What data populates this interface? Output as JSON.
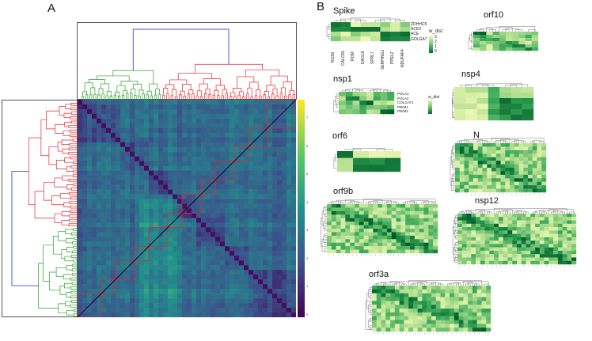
{
  "panels": {
    "a": "A",
    "b": "B"
  },
  "panel_a": {
    "colorbar_ticks": [
      "7",
      "6",
      "5",
      "4",
      "3",
      "2",
      "1",
      "0"
    ],
    "colors": {
      "top_cluster": "#3b4fd8",
      "left_group": "#2ca02c",
      "right_group": "#e8262b",
      "highlight": "#e8262b"
    }
  },
  "panel_b": {
    "spike": {
      "title": "Spike",
      "row_labels": [
        "ZDHHC5",
        "ACE2",
        "ACE",
        "GOLGA7"
      ],
      "col_labels": [
        "RG59",
        "CALCRL",
        "ROM",
        "DAGL8",
        "SPRL7",
        "SERPING1",
        "PPEL2",
        "NDUFAF4"
      ],
      "legend_title": "w_dist",
      "legend_ticks": [
        "3",
        "2",
        "1",
        "0"
      ]
    },
    "orf10": {
      "title": "orf10"
    },
    "nsp1": {
      "title": "nsp1",
      "row_labels": [
        "POLA1",
        "POLA2",
        "COLGAT1",
        "PRIM1",
        "PRIM2"
      ],
      "legend_title": "w_dist"
    },
    "nsp4": {
      "title": "nsp4"
    },
    "orf6": {
      "title": "orf6"
    },
    "n": {
      "title": "N"
    },
    "orf9b": {
      "title": "orf9b"
    },
    "nsp12": {
      "title": "nsp12"
    },
    "orf3a": {
      "title": "orf3a"
    }
  }
}
